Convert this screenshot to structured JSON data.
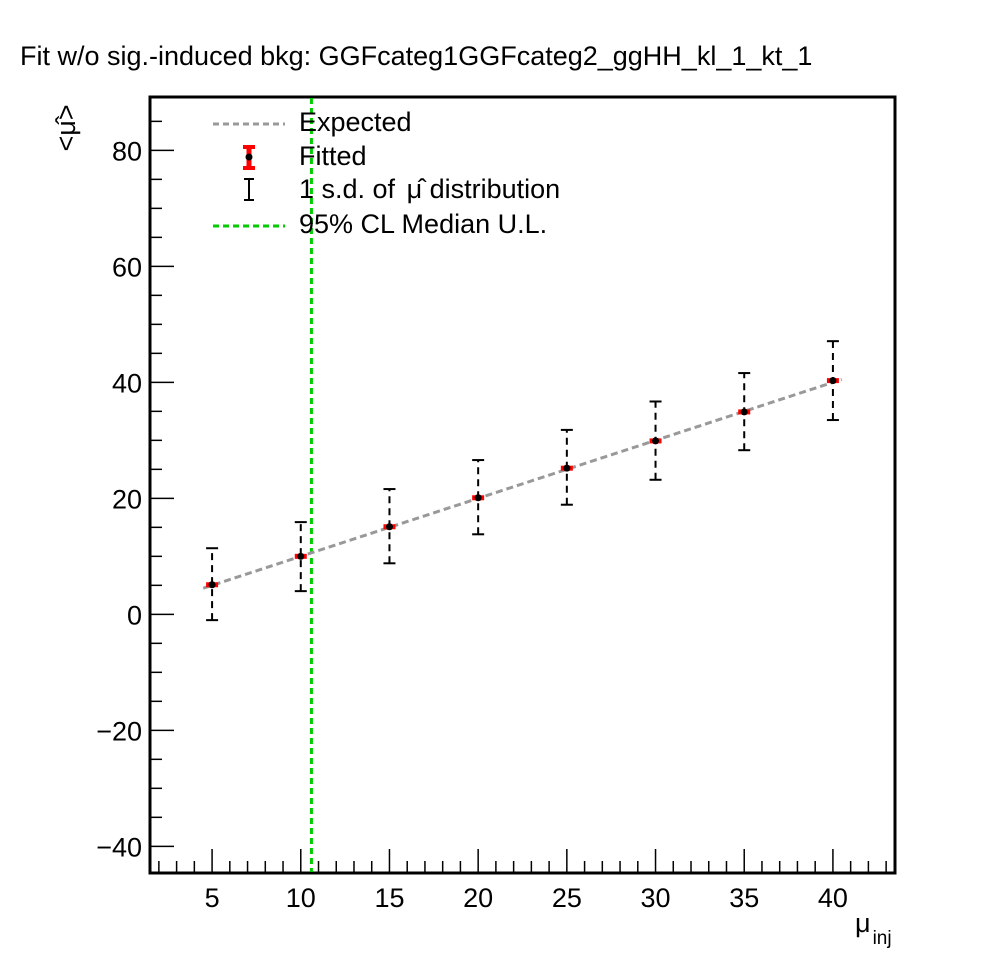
{
  "chart_data": {
    "type": "scatter",
    "title": "Fit w/o sig.-induced bkg: GGFcateg1GGFcateg2_ggHH_kl_1_kt_1",
    "xlabel": {
      "main": "μ",
      "sub": "inj"
    },
    "ylabel": "<μ̂>",
    "xlim": [
      1.5,
      43.5
    ],
    "ylim": [
      -44.6,
      89.2
    ],
    "xticks": [
      5,
      10,
      15,
      20,
      25,
      30,
      35,
      40
    ],
    "yticks": [
      -40,
      -20,
      0,
      20,
      40,
      60,
      80
    ],
    "ytick_labels": [
      "−40",
      "−20",
      "0",
      "20",
      "40",
      "60",
      "80"
    ],
    "grid": false,
    "legend_position": "top-left",
    "expected": {
      "name": "Expected",
      "color": "#999999",
      "x": [
        4.5,
        40.5
      ],
      "y": [
        4.5,
        40.5
      ]
    },
    "fitted": {
      "name": "Fitted",
      "marker_color": "#000000",
      "error_color": "#ff0000",
      "x": [
        5,
        10,
        15,
        20,
        25,
        30,
        35,
        40
      ],
      "y": [
        5.1,
        10.0,
        15.1,
        20.1,
        25.2,
        29.9,
        34.9,
        40.3
      ],
      "err": [
        0.5,
        0.5,
        0.5,
        0.5,
        0.5,
        0.5,
        0.5,
        0.5
      ]
    },
    "sd_band": {
      "name_prefix": "1 s.d. of ",
      "name_symbol": "μ̂",
      "name_suffix": " distribution",
      "color": "#000000",
      "low": [
        -1.0,
        4.0,
        8.8,
        13.8,
        18.9,
        23.2,
        28.3,
        33.5
      ],
      "high": [
        11.4,
        15.9,
        21.6,
        26.6,
        31.8,
        36.7,
        41.6,
        47.1
      ]
    },
    "upper_limit": {
      "name": "95% CL Median U.L.",
      "color": "#00cc00",
      "x": 10.6
    }
  }
}
